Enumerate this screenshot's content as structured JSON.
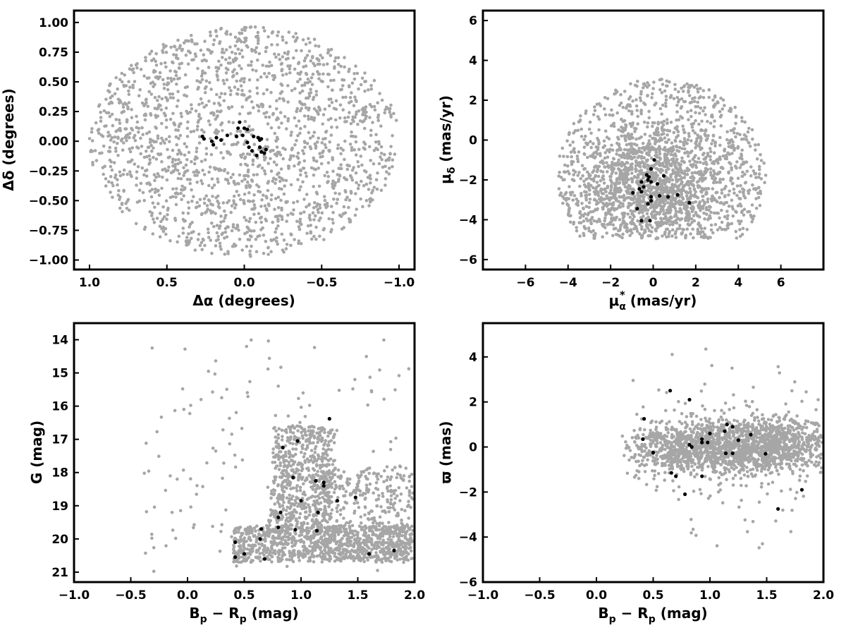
{
  "colors": {
    "field": "#a6a6a6",
    "members": "#000000",
    "axes": "#000000"
  },
  "chart_data": [
    {
      "id": "sky",
      "type": "scatter",
      "xlabel": "Δα (degrees)",
      "ylabel": "Δδ (degrees)",
      "xlim": [
        1.1,
        -1.1
      ],
      "ylim": [
        -1.08,
        1.1
      ],
      "x_reversed": true,
      "xticks": [
        1.0,
        0.5,
        0.0,
        -0.5,
        -1.0
      ],
      "xtick_labels": [
        "1.0",
        "0.5",
        "0.0",
        "−0.5",
        "−1.0"
      ],
      "yticks": [
        -1.0,
        -0.75,
        -0.5,
        -0.25,
        0.0,
        0.25,
        0.5,
        0.75,
        1.0
      ],
      "ytick_labels": [
        "−1.00",
        "−0.75",
        "−0.50",
        "−0.25",
        "0.00",
        "0.25",
        "0.50",
        "0.75",
        "1.00"
      ],
      "grid": false,
      "field_distribution": {
        "shape": "ellipse",
        "center": [
          0.0,
          0.0
        ],
        "semi_axes": [
          1.0,
          0.97
        ],
        "count": 1800
      },
      "series": [
        {
          "points": [
            [
              0.27,
              0.04
            ],
            [
              0.26,
              0.02
            ],
            [
              0.21,
              0.0
            ],
            [
              0.2,
              -0.03
            ],
            [
              0.18,
              0.03
            ],
            [
              0.15,
              0.01
            ],
            [
              0.11,
              0.05
            ],
            [
              0.05,
              0.04
            ],
            [
              0.04,
              0.11
            ],
            [
              0.03,
              0.16
            ],
            [
              0.0,
              0.11
            ],
            [
              -0.02,
              0.1
            ],
            [
              0.01,
              0.05
            ],
            [
              -0.02,
              -0.01
            ],
            [
              -0.03,
              -0.05
            ],
            [
              -0.05,
              -0.08
            ],
            [
              -0.06,
              0.04
            ],
            [
              -0.08,
              -0.12
            ],
            [
              -0.09,
              0.03
            ],
            [
              -0.1,
              0.01
            ],
            [
              -0.1,
              -0.05
            ],
            [
              -0.11,
              -0.09
            ],
            [
              -0.11,
              0.02
            ],
            [
              -0.13,
              -0.1
            ],
            [
              -0.14,
              -0.07
            ]
          ]
        }
      ]
    },
    {
      "id": "proper-motion",
      "type": "scatter",
      "xlabel_main": "μ",
      "xlabel_sub": "α",
      "xlabel_sup": "*",
      "xlabel_unit": " (mas/yr)",
      "ylabel_main": "μ",
      "ylabel_sub": "δ",
      "ylabel_unit": " (mas/yr)",
      "xlim": [
        -8,
        8
      ],
      "ylim": [
        -6.5,
        6.5
      ],
      "xticks": [
        -6,
        -4,
        -2,
        0,
        2,
        4,
        6
      ],
      "xtick_labels": [
        "−6",
        "−4",
        "−2",
        "0",
        "2",
        "4",
        "6"
      ],
      "yticks": [
        -6,
        -4,
        -2,
        0,
        2,
        4,
        6
      ],
      "ytick_labels": [
        "−6",
        "−4",
        "−2",
        "0",
        "2",
        "4",
        "6"
      ],
      "grid": false,
      "field_distribution": {
        "shape": "clipped-disk",
        "center": [
          0.4,
          -1.8
        ],
        "radius": 4.9,
        "y_floor": -4.95,
        "count": 2200
      },
      "series": [
        {
          "points": [
            [
              0.05,
              -1.0
            ],
            [
              -0.1,
              -1.45
            ],
            [
              -0.3,
              -1.75
            ],
            [
              -0.2,
              -1.85
            ],
            [
              0.5,
              -1.8
            ],
            [
              -0.25,
              -2.0
            ],
            [
              -0.55,
              -2.1
            ],
            [
              -0.1,
              -2.1
            ],
            [
              0.2,
              -2.2
            ],
            [
              -0.45,
              -2.35
            ],
            [
              -0.65,
              -2.45
            ],
            [
              -0.55,
              -2.6
            ],
            [
              -0.95,
              -2.65
            ],
            [
              0.3,
              -2.8
            ],
            [
              0.7,
              -2.85
            ],
            [
              1.15,
              -2.75
            ],
            [
              -0.1,
              -2.85
            ],
            [
              -0.1,
              -3.05
            ],
            [
              -0.25,
              -3.2
            ],
            [
              -0.75,
              -3.45
            ],
            [
              1.7,
              -3.15
            ],
            [
              -0.55,
              -4.05
            ],
            [
              -0.15,
              -4.05
            ]
          ]
        }
      ]
    },
    {
      "id": "cmd",
      "type": "scatter",
      "xlabel_main": "B",
      "xlabel_sub1": "p",
      "xlabel_mid": " − R",
      "xlabel_sub2": "p",
      "xlabel_unit": " (mag)",
      "ylabel": "G (mag)",
      "xlim": [
        -1.0,
        2.0
      ],
      "ylim": [
        21.3,
        13.5
      ],
      "y_reversed": true,
      "xticks": [
        -1.0,
        -0.5,
        0.0,
        0.5,
        1.0,
        1.5,
        2.0
      ],
      "xtick_labels": [
        "−1.0",
        "−0.5",
        "0.0",
        "0.5",
        "1.0",
        "1.5",
        "2.0"
      ],
      "yticks": [
        14,
        15,
        16,
        17,
        18,
        19,
        20,
        21
      ],
      "ytick_labels": [
        "14",
        "15",
        "16",
        "17",
        "18",
        "19",
        "20",
        "21"
      ],
      "grid": false,
      "field_distribution": {
        "shape": "wedge",
        "count": 2100
      },
      "series": [
        {
          "points": [
            [
              0.42,
              20.55
            ],
            [
              0.5,
              20.45
            ],
            [
              0.68,
              20.6
            ],
            [
              0.42,
              20.1
            ],
            [
              0.64,
              20.0
            ],
            [
              0.65,
              19.7
            ],
            [
              0.8,
              19.65
            ],
            [
              0.8,
              19.35
            ],
            [
              0.82,
              19.2
            ],
            [
              0.95,
              19.72
            ],
            [
              1.14,
              19.75
            ],
            [
              1.15,
              19.2
            ],
            [
              1.0,
              18.85
            ],
            [
              1.32,
              18.85
            ],
            [
              1.48,
              18.75
            ],
            [
              1.2,
              18.4
            ],
            [
              1.2,
              18.3
            ],
            [
              1.13,
              18.25
            ],
            [
              0.93,
              18.15
            ],
            [
              0.84,
              17.25
            ],
            [
              0.97,
              17.05
            ],
            [
              1.25,
              16.38
            ],
            [
              1.6,
              20.45
            ],
            [
              1.82,
              20.35
            ]
          ]
        }
      ]
    },
    {
      "id": "parallax",
      "type": "scatter",
      "xlabel_main": "B",
      "xlabel_sub1": "p",
      "xlabel_mid": " − R",
      "xlabel_sub2": "p",
      "xlabel_unit": " (mag)",
      "ylabel": "ϖ (mas)",
      "xlim": [
        -1.0,
        2.0
      ],
      "ylim": [
        -6.0,
        5.5
      ],
      "xticks": [
        -1.0,
        -0.5,
        0.0,
        0.5,
        1.0,
        1.5,
        2.0
      ],
      "xtick_labels": [
        "−1.0",
        "−0.5",
        "0.0",
        "0.5",
        "1.0",
        "1.5",
        "2.0"
      ],
      "yticks": [
        -6,
        -4,
        -2,
        0,
        2,
        4
      ],
      "ytick_labels": [
        "−6",
        "−4",
        "−2",
        "0",
        "2",
        "4"
      ],
      "grid": false,
      "field_distribution": {
        "shape": "band",
        "count": 2100
      },
      "series": [
        {
          "points": [
            [
              0.65,
              2.5
            ],
            [
              0.82,
              2.1
            ],
            [
              0.42,
              1.25
            ],
            [
              0.41,
              0.35
            ],
            [
              0.5,
              -0.25
            ],
            [
              0.82,
              0.1
            ],
            [
              0.84,
              0.0
            ],
            [
              0.93,
              0.35
            ],
            [
              0.93,
              0.2
            ],
            [
              0.98,
              0.2
            ],
            [
              1.0,
              0.6
            ],
            [
              1.13,
              0.7
            ],
            [
              1.15,
              1.0
            ],
            [
              1.2,
              0.9
            ],
            [
              1.25,
              0.3
            ],
            [
              1.14,
              -0.28
            ],
            [
              1.2,
              -0.28
            ],
            [
              1.36,
              0.55
            ],
            [
              1.49,
              -0.3
            ],
            [
              0.66,
              -1.15
            ],
            [
              0.7,
              -1.3
            ],
            [
              0.93,
              -1.3
            ],
            [
              0.78,
              -2.1
            ],
            [
              1.6,
              -2.75
            ],
            [
              1.81,
              -1.9
            ]
          ]
        }
      ]
    }
  ]
}
